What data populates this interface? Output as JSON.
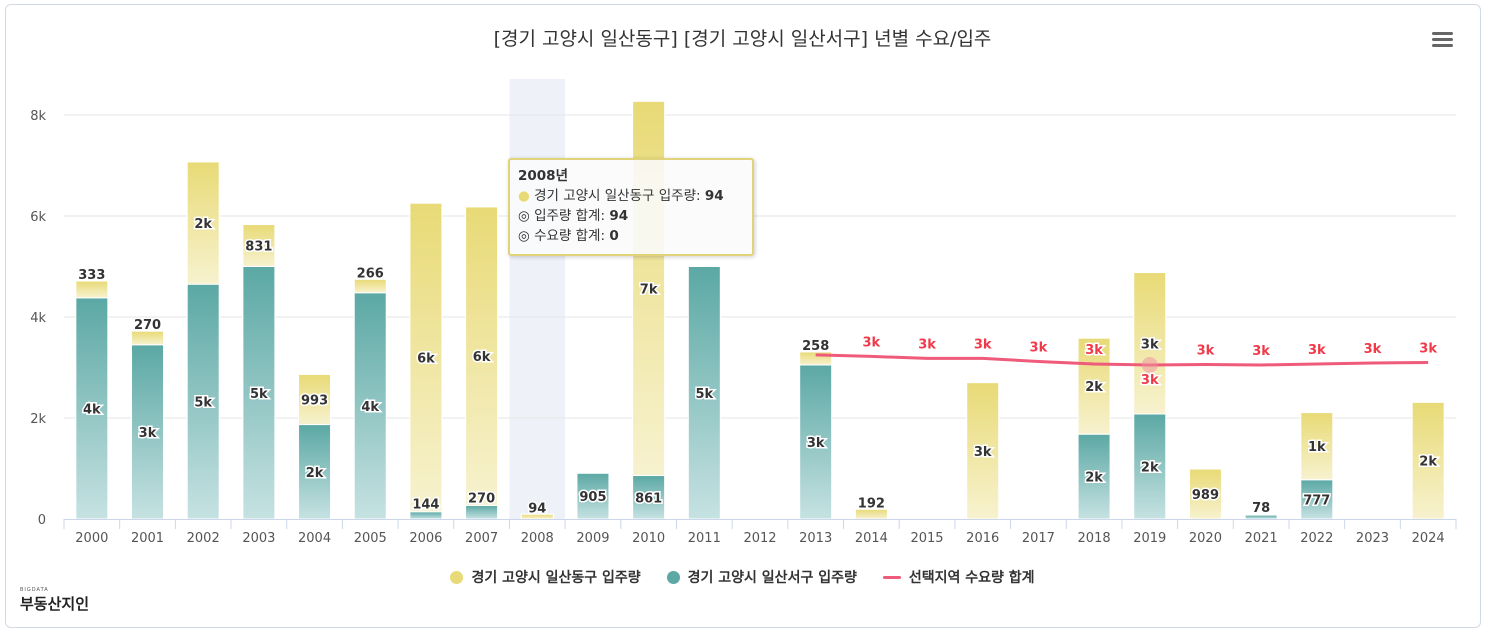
{
  "title": "[경기 고양시 일산동구] [경기 고양시 일산서구] 년별 수요/입주",
  "logo": {
    "small": "BIGDATA",
    "main": "부동산지인"
  },
  "colors": {
    "teal": "#5ba8a4",
    "yellow": "#e8da76",
    "line": "#ef5b7b",
    "line_label": "#f03a4a"
  },
  "tooltip": {
    "year": "2008년",
    "row1_label": "경기 고양시 일산동구 입주량: ",
    "row1_value": "94",
    "row2_label": "입주량 합계: ",
    "row2_value": "94",
    "row3_label": "수요량 합계: ",
    "row3_value": "0"
  },
  "chart_data": {
    "type": "bar",
    "stacked": true,
    "title": "[경기 고양시 일산동구] [경기 고양시 일산서구] 년별 수요/입주",
    "categories": [
      "2000",
      "2001",
      "2002",
      "2003",
      "2004",
      "2005",
      "2006",
      "2007",
      "2008",
      "2009",
      "2010",
      "2011",
      "2012",
      "2013",
      "2014",
      "2015",
      "2016",
      "2017",
      "2018",
      "2019",
      "2020",
      "2021",
      "2022",
      "2023",
      "2024"
    ],
    "ylim": [
      0,
      8500
    ],
    "yticks": [
      0,
      2000,
      4000,
      6000,
      8000
    ],
    "ytick_labels": [
      "0",
      "2k",
      "4k",
      "6k",
      "8k"
    ],
    "grid": true,
    "legend_position": "bottom",
    "highlighted_category": "2008",
    "series": [
      {
        "name": "경기 고양시 일산서구 입주량",
        "type": "bar",
        "color": "#5ba8a4",
        "values": [
          4380,
          3450,
          4650,
          5000,
          1870,
          4480,
          144,
          270,
          0,
          905,
          861,
          5000,
          0,
          3050,
          0,
          0,
          0,
          0,
          1680,
          2080,
          0,
          78,
          777,
          0,
          0
        ],
        "labels": [
          "4k",
          "3k",
          "5k",
          "5k",
          "2k",
          "4k",
          "144",
          "270",
          "",
          "905",
          "861",
          "5k",
          "",
          "3k",
          "",
          "",
          "",
          "",
          "2k",
          "2k",
          "",
          "78",
          "777",
          "",
          ""
        ]
      },
      {
        "name": "경기 고양시 일산동구 입주량",
        "type": "bar",
        "color": "#e8da76",
        "values": [
          333,
          270,
          2420,
          831,
          993,
          266,
          6110,
          5910,
          94,
          0,
          7410,
          0,
          0,
          258,
          192,
          0,
          2700,
          0,
          1900,
          2800,
          989,
          0,
          1330,
          0,
          2310
        ],
        "labels": [
          "333",
          "270",
          "2k",
          "831",
          "993",
          "266",
          "6k",
          "6k",
          "94",
          "",
          "7k",
          "",
          "",
          "258",
          "192",
          "",
          "3k",
          "",
          "2k",
          "3k",
          "989",
          "",
          "1k",
          "",
          "2k"
        ]
      },
      {
        "name": "선택지역 수요량 합계",
        "type": "line",
        "color": "#ef5b7b",
        "values": [
          null,
          null,
          null,
          null,
          null,
          null,
          null,
          null,
          null,
          null,
          null,
          null,
          null,
          3250,
          3220,
          3180,
          3180,
          3120,
          3070,
          3050,
          3060,
          3050,
          3070,
          3090,
          3100
        ],
        "labels": [
          "",
          "",
          "",
          "",
          "",
          "",
          "",
          "",
          "",
          "",
          "",
          "",
          "",
          "",
          "3k",
          "3k",
          "3k",
          "3k",
          "3k",
          "3k",
          "3k",
          "3k",
          "3k",
          "3k",
          "3k"
        ]
      }
    ]
  }
}
